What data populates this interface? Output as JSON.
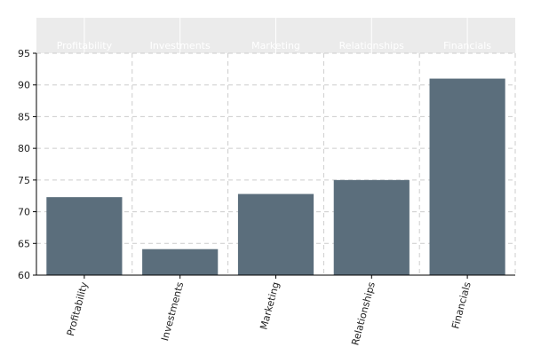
{
  "chart_data": {
    "type": "bar",
    "categories": [
      "Profitability",
      "Investments",
      "Marketing",
      "Relationships",
      "Financials"
    ],
    "values": [
      72.3,
      64.1,
      72.8,
      75.0,
      91.0
    ],
    "header_labels": [
      "Profitability",
      "Investments",
      "Marketing",
      "Relationships",
      "Financials"
    ],
    "ylim": [
      60,
      95
    ],
    "yticks": [
      60,
      65,
      70,
      75,
      80,
      85,
      90,
      95
    ],
    "title": "",
    "xlabel": "",
    "ylabel": "",
    "grid": true,
    "legend": "none",
    "colors": {
      "bar": "#5b6e7c",
      "header_band": "#ebebeb",
      "grid": "#cccccc",
      "axis": "#000000",
      "header_text": "#ffffff"
    }
  }
}
